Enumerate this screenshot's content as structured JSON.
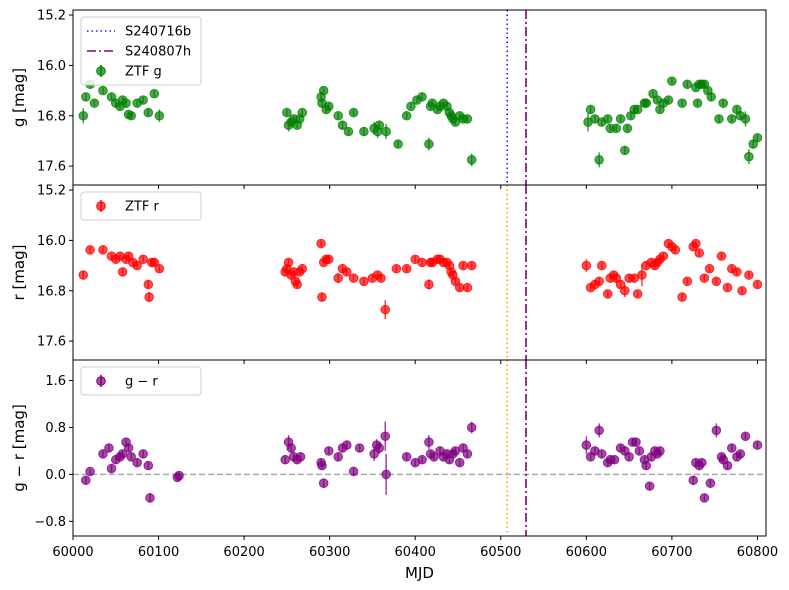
{
  "chart_data": {
    "type": "scatter",
    "xlabel": "MJD",
    "xlim": [
      60000,
      60810
    ],
    "xticks": [
      60000,
      60100,
      60200,
      60300,
      60400,
      60500,
      60600,
      60700,
      60800
    ],
    "event_lines": [
      {
        "name": "S240716b",
        "mjd": 60507.5,
        "style": "dotted",
        "color_top": "#1f1fff",
        "color_other": "#ffa500"
      },
      {
        "name": "S240807h",
        "mjd": 60529.5,
        "style": "dashdot",
        "color": "#800080"
      }
    ],
    "panels": [
      {
        "id": "g",
        "ylabel": "g [mag]",
        "ylim": [
          17.9,
          15.12
        ],
        "yticks": [
          "15.2",
          "16.0",
          "16.8",
          "17.6"
        ],
        "ytick_values": [
          15.2,
          16.0,
          16.8,
          17.6
        ],
        "color": "#008000",
        "legend": [
          "S240716b",
          "S240807h",
          "ZTF g"
        ],
        "series": {
          "name": "ZTF g",
          "x": [
            60012,
            60015,
            60020,
            60025,
            60035,
            60045,
            60050,
            60055,
            60058,
            60062,
            60065,
            60068,
            60075,
            60082,
            60088,
            60095,
            60101,
            60250,
            60252,
            60255,
            60258,
            60262,
            60265,
            60268,
            60290,
            60291,
            60293,
            60296,
            60299,
            60310,
            60315,
            60322,
            60328,
            60340,
            60352,
            60356,
            60358,
            60366,
            60380,
            60390,
            60395,
            60402,
            60408,
            60416,
            60418,
            60420,
            60426,
            60429,
            60433,
            60437,
            60440,
            60442,
            60444,
            60447,
            60452,
            60456,
            60461,
            60466,
            60602,
            60605,
            60610,
            60615,
            60618,
            60625,
            60628,
            60635,
            60640,
            60645,
            60648,
            60652,
            60656,
            60660,
            60668,
            60670,
            60678,
            60683,
            60686,
            60690,
            60696,
            60700,
            60712,
            60718,
            60728,
            60730,
            60732,
            60735,
            60738,
            60742,
            60746,
            60755,
            60760,
            60770,
            60776,
            60780,
            60786,
            60790,
            60795,
            60800
          ],
          "y": [
            16.8,
            16.5,
            16.3,
            16.6,
            16.4,
            16.5,
            16.6,
            16.65,
            16.55,
            16.6,
            16.78,
            16.8,
            16.6,
            16.55,
            16.75,
            16.45,
            16.8,
            16.75,
            16.95,
            16.9,
            16.85,
            16.95,
            16.85,
            16.75,
            16.5,
            16.6,
            16.4,
            16.7,
            16.65,
            16.8,
            16.95,
            17.05,
            16.75,
            17.05,
            17.0,
            17.05,
            16.95,
            17.05,
            17.25,
            16.8,
            16.65,
            16.55,
            16.5,
            17.25,
            16.65,
            16.6,
            16.7,
            16.65,
            16.6,
            16.65,
            16.75,
            16.8,
            16.85,
            16.9,
            16.8,
            16.85,
            16.85,
            17.5,
            16.9,
            16.7,
            16.85,
            17.5,
            16.9,
            16.85,
            17.0,
            17.0,
            16.85,
            17.35,
            17.0,
            16.8,
            16.7,
            16.7,
            16.6,
            16.6,
            16.45,
            16.55,
            16.7,
            16.6,
            16.55,
            16.25,
            16.6,
            16.3,
            16.35,
            16.6,
            16.3,
            16.3,
            16.3,
            16.4,
            16.5,
            16.85,
            16.6,
            16.85,
            16.7,
            16.8,
            16.85,
            17.45,
            17.25,
            17.15
          ],
          "yerr": [
            0.12,
            0.05,
            0.05,
            0.05,
            0.05,
            0.05,
            0.06,
            0.05,
            0.05,
            0.06,
            0.05,
            0.06,
            0.05,
            0.05,
            0.06,
            0.05,
            0.1,
            0.05,
            0.1,
            0.06,
            0.05,
            0.05,
            0.05,
            0.05,
            0.08,
            0.06,
            0.05,
            0.06,
            0.05,
            0.05,
            0.06,
            0.05,
            0.05,
            0.06,
            0.1,
            0.1,
            0.05,
            0.12,
            0.05,
            0.05,
            0.05,
            0.05,
            0.05,
            0.1,
            0.05,
            0.05,
            0.05,
            0.05,
            0.05,
            0.05,
            0.05,
            0.05,
            0.05,
            0.05,
            0.05,
            0.05,
            0.05,
            0.1,
            0.15,
            0.06,
            0.05,
            0.12,
            0.05,
            0.05,
            0.05,
            0.05,
            0.05,
            0.06,
            0.05,
            0.05,
            0.05,
            0.05,
            0.05,
            0.05,
            0.05,
            0.05,
            0.05,
            0.05,
            0.05,
            0.05,
            0.05,
            0.05,
            0.05,
            0.05,
            0.05,
            0.05,
            0.05,
            0.05,
            0.06,
            0.06,
            0.05,
            0.05,
            0.05,
            0.05,
            0.12,
            0.12,
            0.06,
            0.05
          ]
        }
      },
      {
        "id": "r",
        "ylabel": "r [mag]",
        "ylim": [
          17.9,
          15.12
        ],
        "yticks": [
          "15.2",
          "16.0",
          "16.8",
          "17.6"
        ],
        "ytick_values": [
          15.2,
          16.0,
          16.8,
          17.6
        ],
        "color": "#ff0000",
        "legend": [
          "ZTF r"
        ],
        "series": {
          "name": "ZTF r",
          "x": [
            60012,
            60020,
            60035,
            60045,
            60050,
            60055,
            60058,
            60062,
            60065,
            60070,
            60075,
            60082,
            60088,
            60089,
            60092,
            60095,
            60101,
            60248,
            60250,
            60252,
            60255,
            60258,
            60260,
            60262,
            60265,
            60268,
            60290,
            60291,
            60293,
            60296,
            60299,
            60310,
            60315,
            60320,
            60328,
            60340,
            60350,
            60356,
            60360,
            60365,
            60378,
            60390,
            60400,
            60408,
            60416,
            60418,
            60420,
            60426,
            60429,
            60433,
            60437,
            60440,
            60442,
            60444,
            60447,
            60452,
            60456,
            60461,
            60466,
            60600,
            60605,
            60610,
            60615,
            60618,
            60625,
            60628,
            60632,
            60635,
            60640,
            60645,
            60650,
            60656,
            60660,
            60665,
            60670,
            60676,
            60680,
            60683,
            60686,
            60690,
            60696,
            60700,
            60704,
            60712,
            60718,
            60725,
            60728,
            60732,
            60738,
            60744,
            60752,
            60758,
            60765,
            60770,
            60776,
            60782,
            60790,
            60800
          ],
          "y": [
            16.55,
            16.15,
            16.15,
            16.25,
            16.3,
            16.25,
            16.5,
            16.3,
            16.25,
            16.35,
            16.4,
            16.3,
            16.7,
            16.9,
            16.35,
            16.35,
            16.45,
            16.5,
            16.45,
            16.35,
            16.55,
            16.5,
            16.65,
            16.7,
            16.5,
            16.45,
            16.05,
            16.9,
            16.35,
            16.3,
            16.3,
            16.6,
            16.45,
            16.5,
            16.6,
            16.65,
            16.6,
            16.55,
            16.6,
            17.1,
            16.45,
            16.45,
            16.3,
            16.35,
            16.7,
            16.35,
            16.35,
            16.3,
            16.3,
            16.35,
            16.35,
            16.4,
            16.5,
            16.55,
            16.65,
            16.75,
            16.4,
            16.75,
            16.4,
            16.4,
            16.75,
            16.7,
            16.65,
            16.4,
            16.85,
            16.6,
            16.55,
            16.6,
            16.7,
            16.8,
            16.6,
            16.6,
            16.85,
            16.55,
            16.4,
            16.35,
            16.4,
            16.35,
            16.3,
            16.25,
            16.05,
            16.1,
            16.15,
            16.9,
            16.65,
            16.1,
            16.05,
            16.2,
            16.6,
            16.45,
            16.65,
            16.25,
            16.75,
            16.45,
            16.5,
            16.8,
            16.55,
            16.7
          ],
          "yerr": [
            0.06,
            0.05,
            0.05,
            0.05,
            0.05,
            0.05,
            0.06,
            0.05,
            0.05,
            0.05,
            0.05,
            0.05,
            0.06,
            0.08,
            0.05,
            0.05,
            0.05,
            0.06,
            0.08,
            0.05,
            0.05,
            0.05,
            0.05,
            0.06,
            0.05,
            0.05,
            0.05,
            0.06,
            0.05,
            0.05,
            0.05,
            0.08,
            0.06,
            0.05,
            0.05,
            0.05,
            0.05,
            0.05,
            0.05,
            0.15,
            0.05,
            0.05,
            0.05,
            0.05,
            0.08,
            0.05,
            0.05,
            0.05,
            0.05,
            0.05,
            0.05,
            0.05,
            0.05,
            0.06,
            0.05,
            0.05,
            0.05,
            0.05,
            0.05,
            0.1,
            0.05,
            0.05,
            0.05,
            0.05,
            0.05,
            0.05,
            0.05,
            0.06,
            0.06,
            0.1,
            0.06,
            0.05,
            0.05,
            0.18,
            0.05,
            0.05,
            0.05,
            0.05,
            0.05,
            0.05,
            0.05,
            0.05,
            0.05,
            0.05,
            0.05,
            0.05,
            0.05,
            0.05,
            0.05,
            0.05,
            0.05,
            0.05,
            0.05,
            0.05,
            0.05,
            0.05,
            0.05,
            0.05
          ]
        }
      },
      {
        "id": "gr",
        "ylabel": "g − r [mag]",
        "ylim": [
          -1.05,
          1.95
        ],
        "yticks": [
          "1.6",
          "0.8",
          "0.0",
          "−0.8"
        ],
        "ytick_values": [
          1.6,
          0.8,
          0.0,
          -0.8
        ],
        "color": "#800080",
        "zero_line": true,
        "legend": [
          "g − r"
        ],
        "series": {
          "name": "g − r",
          "x": [
            60015,
            60020,
            60035,
            60042,
            60045,
            60050,
            60055,
            60058,
            60062,
            60065,
            60068,
            60075,
            60082,
            60088,
            60090,
            60122,
            60124,
            60248,
            60252,
            60255,
            60258,
            60262,
            60266,
            60290,
            60291,
            60293,
            60299,
            60310,
            60315,
            60320,
            60328,
            60335,
            60352,
            60355,
            60358,
            60365,
            60366,
            60390,
            60400,
            60408,
            60416,
            60418,
            60422,
            60429,
            60433,
            60437,
            60440,
            60444,
            60447,
            60452,
            60456,
            60461,
            60466,
            60600,
            60605,
            60610,
            60615,
            60618,
            60625,
            60628,
            60633,
            60640,
            60645,
            60650,
            60654,
            60658,
            60662,
            60668,
            60670,
            60674,
            60676,
            60680,
            60683,
            60686,
            60725,
            60728,
            60732,
            60735,
            60738,
            60745,
            60752,
            60758,
            60760,
            60765,
            60770,
            60776,
            60780,
            60786,
            60800
          ],
          "y": [
            -0.1,
            0.05,
            0.35,
            0.45,
            0.1,
            0.25,
            0.3,
            0.35,
            0.55,
            0.45,
            0.3,
            0.2,
            0.35,
            0.15,
            -0.4,
            -0.05,
            -0.02,
            0.25,
            0.55,
            0.45,
            0.3,
            0.25,
            0.3,
            0.2,
            0.15,
            -0.15,
            0.4,
            0.3,
            0.45,
            0.5,
            0.05,
            0.45,
            0.35,
            0.5,
            0.45,
            0.65,
            0.0,
            0.3,
            0.2,
            0.25,
            0.55,
            0.35,
            0.3,
            0.4,
            0.3,
            0.35,
            0.25,
            0.35,
            0.4,
            0.2,
            0.45,
            0.35,
            0.8,
            0.5,
            0.3,
            0.4,
            0.75,
            0.35,
            0.2,
            0.25,
            0.25,
            0.45,
            0.4,
            0.3,
            0.55,
            0.55,
            0.4,
            0.25,
            0.15,
            -0.2,
            0.3,
            0.4,
            0.35,
            0.4,
            -0.1,
            0.2,
            0.15,
            0.2,
            -0.4,
            -0.15,
            0.75,
            0.3,
            0.25,
            0.15,
            0.45,
            0.3,
            0.35,
            0.65,
            0.5
          ],
          "yerr": [
            0.06,
            0.05,
            0.06,
            0.06,
            0.06,
            0.06,
            0.06,
            0.06,
            0.06,
            0.06,
            0.06,
            0.06,
            0.06,
            0.06,
            0.08,
            0.06,
            0.06,
            0.06,
            0.12,
            0.08,
            0.06,
            0.06,
            0.06,
            0.06,
            0.06,
            0.08,
            0.06,
            0.06,
            0.06,
            0.06,
            0.06,
            0.06,
            0.12,
            0.1,
            0.1,
            0.25,
            0.35,
            0.06,
            0.06,
            0.06,
            0.12,
            0.06,
            0.06,
            0.06,
            0.06,
            0.06,
            0.06,
            0.06,
            0.06,
            0.06,
            0.06,
            0.06,
            0.1,
            0.15,
            0.06,
            0.06,
            0.12,
            0.06,
            0.06,
            0.06,
            0.06,
            0.06,
            0.06,
            0.06,
            0.06,
            0.06,
            0.06,
            0.06,
            0.06,
            0.06,
            0.06,
            0.06,
            0.06,
            0.06,
            0.08,
            0.06,
            0.06,
            0.06,
            0.06,
            0.06,
            0.12,
            0.06,
            0.06,
            0.06,
            0.06,
            0.06,
            0.06,
            0.06,
            0.06
          ]
        }
      }
    ]
  }
}
